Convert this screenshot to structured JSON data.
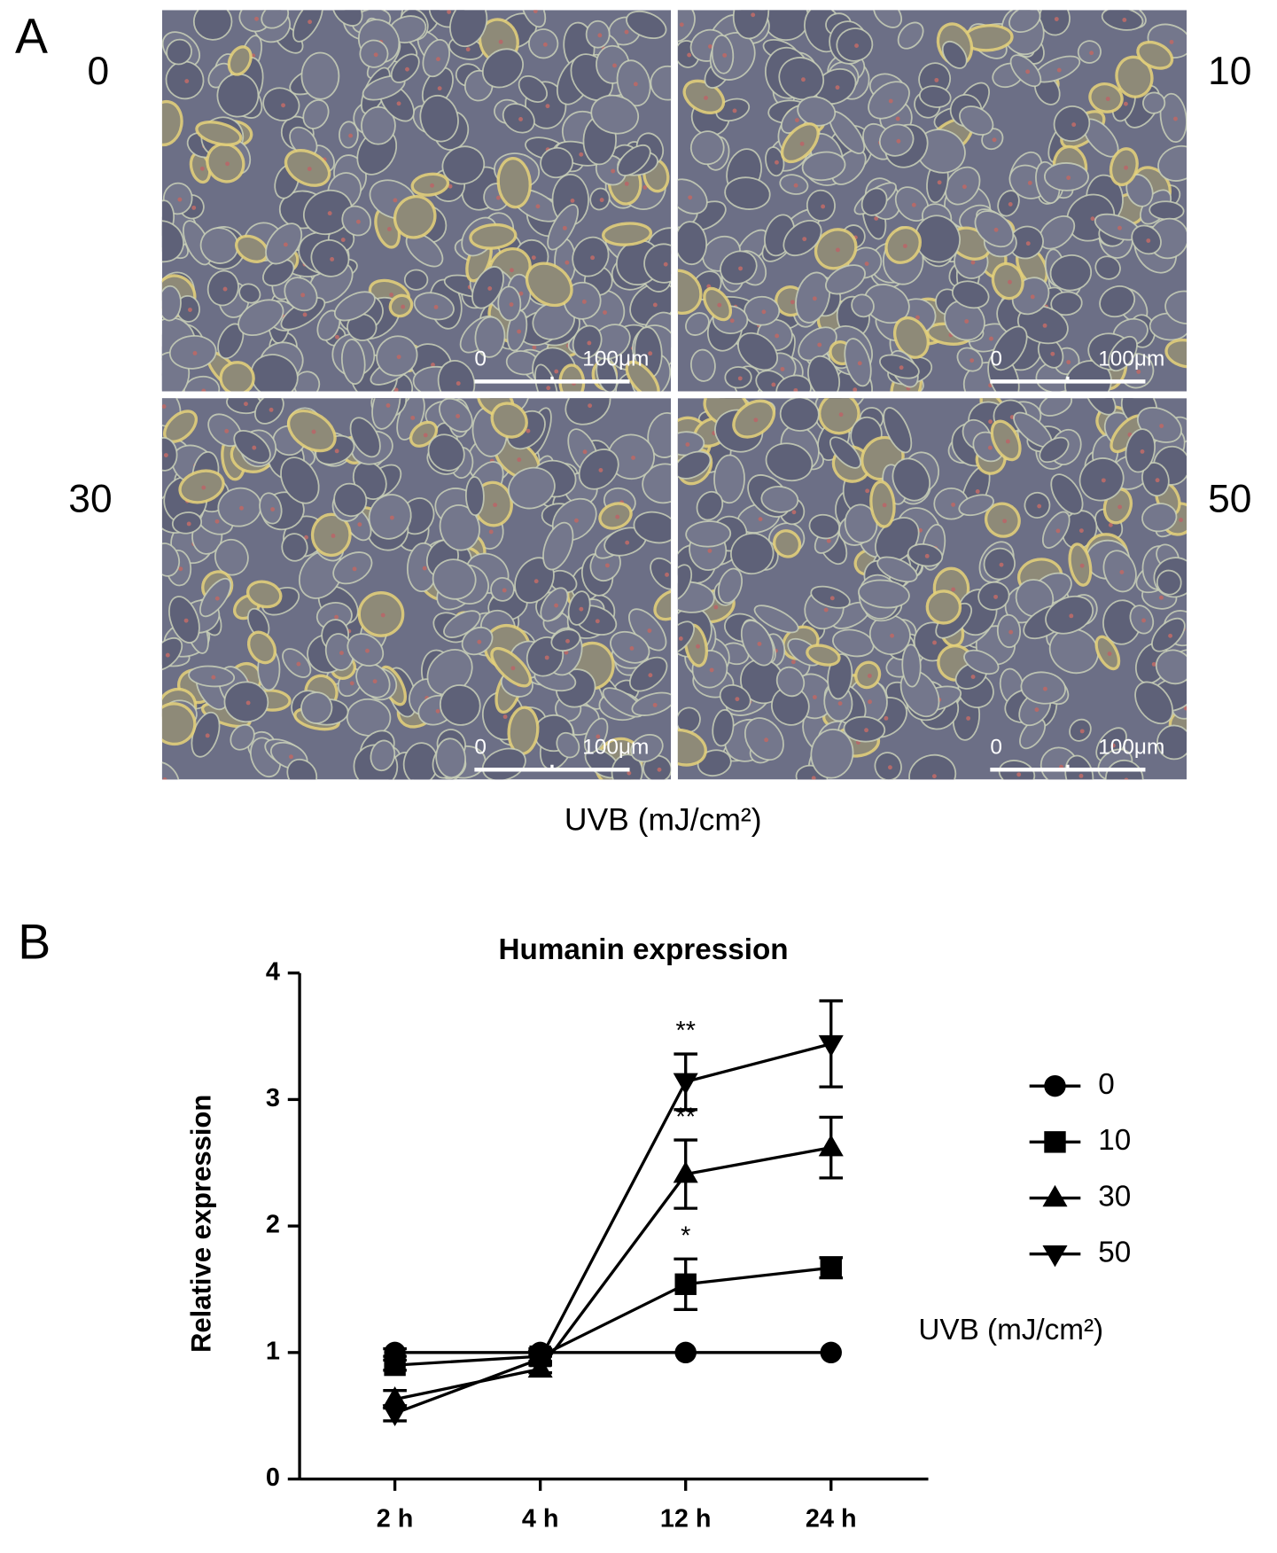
{
  "panel_a": {
    "label": "A",
    "doses": [
      "0",
      "10",
      "30",
      "50"
    ],
    "scale_bar": {
      "start": "0",
      "end": "100μm"
    },
    "axis_label": "UVB (mJ/cm²)"
  },
  "chart_data": {
    "type": "line",
    "panel_label": "B",
    "title": "Humanin expression",
    "y_label": "Relative expression",
    "categories": [
      "2 h",
      "4 h",
      "12 h",
      "24 h"
    ],
    "ylim": [
      0,
      4
    ],
    "yticks": [
      0,
      1,
      2,
      3,
      4
    ],
    "legend_title": "UVB (mJ/cm²)",
    "legend_position": "right",
    "series": [
      {
        "name": "0",
        "color": "#000000",
        "marker": "circle",
        "values": [
          1,
          1,
          1,
          1
        ],
        "errors": [
          0.03,
          0.03,
          0,
          0
        ]
      },
      {
        "name": "10",
        "color": "#000000",
        "marker": "square",
        "values": [
          0.9,
          0.97,
          1.54,
          1.67
        ],
        "errors": [
          0.04,
          0.04,
          0.2,
          0.08
        ]
      },
      {
        "name": "30",
        "color": "#000000",
        "marker": "triangle-up",
        "values": [
          0.63,
          0.87,
          2.41,
          2.62
        ],
        "errors": [
          0.07,
          0.03,
          0.27,
          0.24
        ]
      },
      {
        "name": "50",
        "color": "#000000",
        "marker": "triangle-down",
        "values": [
          0.52,
          0.95,
          3.14,
          3.44
        ],
        "errors": [
          0.06,
          0.03,
          0.22,
          0.34
        ]
      }
    ],
    "annotations": [
      {
        "text": "**"
      },
      {
        "text": "**"
      },
      {
        "text": "*"
      }
    ]
  }
}
